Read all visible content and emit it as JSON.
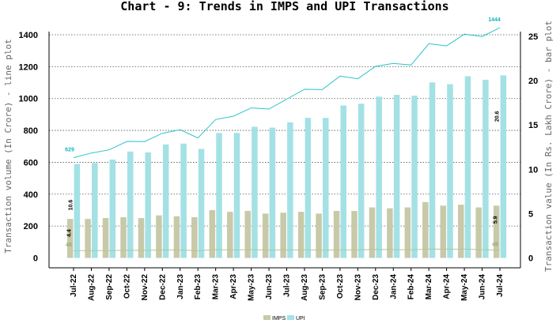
{
  "chart_data": {
    "type": "bar+line",
    "title": "Chart - 9: Trends in IMPS and UPI Transactions",
    "ylabel_left": "Transaction volume (In Crore) - line plot",
    "ylabel_right": "Transaction value (In Rs. Lakh Crore) - bar plot",
    "categories": [
      "Jul-22",
      "Aug-22",
      "Sep-22",
      "Oct-22",
      "Nov-22",
      "Dec-22",
      "Jan-23",
      "Feb-23",
      "Mar-23",
      "Apr-23",
      "May-23",
      "Jun-23",
      "Jul-23",
      "Aug-23",
      "Sep-23",
      "Oct-23",
      "Nov-23",
      "Dec-23",
      "Jan-24",
      "Feb-24",
      "Mar-24",
      "Apr-24",
      "May-24",
      "Jun-24",
      "Jul-24"
    ],
    "ylim_left": [
      0,
      1500
    ],
    "yticks_left": [
      "0",
      "200",
      "400",
      "600",
      "800",
      "1000",
      "1200",
      "1400"
    ],
    "ylim_right": [
      0,
      26.8
    ],
    "yticks_right": [
      "0",
      "5",
      "10",
      "15",
      "20",
      "25"
    ],
    "grid": "horizontal dotted",
    "legend_position": "bottom-center",
    "bar_series": [
      {
        "name": "IMPS",
        "color": "#c8c9a9",
        "values": [
          4.4,
          4.4,
          4.5,
          4.6,
          4.5,
          4.8,
          4.7,
          4.6,
          5.4,
          5.2,
          5.3,
          5.0,
          5.1,
          5.2,
          5.0,
          5.3,
          5.3,
          5.7,
          5.6,
          5.7,
          6.3,
          5.9,
          6.0,
          5.7,
          5.9
        ]
      },
      {
        "name": "UPI",
        "color": "#a3e1e5",
        "values": [
          10.6,
          10.7,
          11.1,
          12.0,
          11.9,
          12.8,
          12.9,
          12.3,
          14.1,
          14.1,
          14.8,
          14.7,
          15.3,
          15.8,
          15.8,
          17.2,
          17.4,
          18.2,
          18.4,
          18.3,
          19.8,
          19.6,
          20.5,
          20.1,
          20.6
        ]
      }
    ],
    "line_series": [
      {
        "name": "IMPS",
        "color": "#b7c49a",
        "values": [
          46,
          46,
          46,
          48,
          47,
          50,
          50,
          45,
          52,
          50,
          52,
          49,
          50,
          51,
          48,
          50,
          50,
          53,
          52,
          51,
          56,
          55,
          55,
          52,
          49
        ]
      },
      {
        "name": "UPI",
        "color": "#2cc4cb",
        "values": [
          629,
          658,
          678,
          731,
          730,
          782,
          804,
          753,
          868,
          889,
          941,
          934,
          996,
          1058,
          1056,
          1141,
          1124,
          1202,
          1220,
          1210,
          1344,
          1330,
          1404,
          1389,
          1444
        ]
      }
    ],
    "data_labels": [
      {
        "text": "629",
        "series": "UPI line",
        "index": 0,
        "color": "#1bb5c0"
      },
      {
        "text": "1444",
        "series": "UPI line",
        "index": 24,
        "color": "#1bb5c0"
      },
      {
        "text": "46",
        "series": "IMPS line",
        "index": 0,
        "color": "#9aaa7a"
      },
      {
        "text": "49",
        "series": "IMPS line",
        "index": 24,
        "color": "#9aaa7a"
      },
      {
        "text": "10.6",
        "series": "UPI bar",
        "index": 0,
        "color": "#000000"
      },
      {
        "text": "20.6",
        "series": "UPI bar",
        "index": 24,
        "color": "#000000"
      },
      {
        "text": "4.4",
        "series": "IMPS bar",
        "index": 0,
        "color": "#000000"
      },
      {
        "text": "5.9",
        "series": "IMPS bar",
        "index": 24,
        "color": "#000000"
      }
    ],
    "legend": [
      "IMPS",
      "UPI"
    ]
  }
}
